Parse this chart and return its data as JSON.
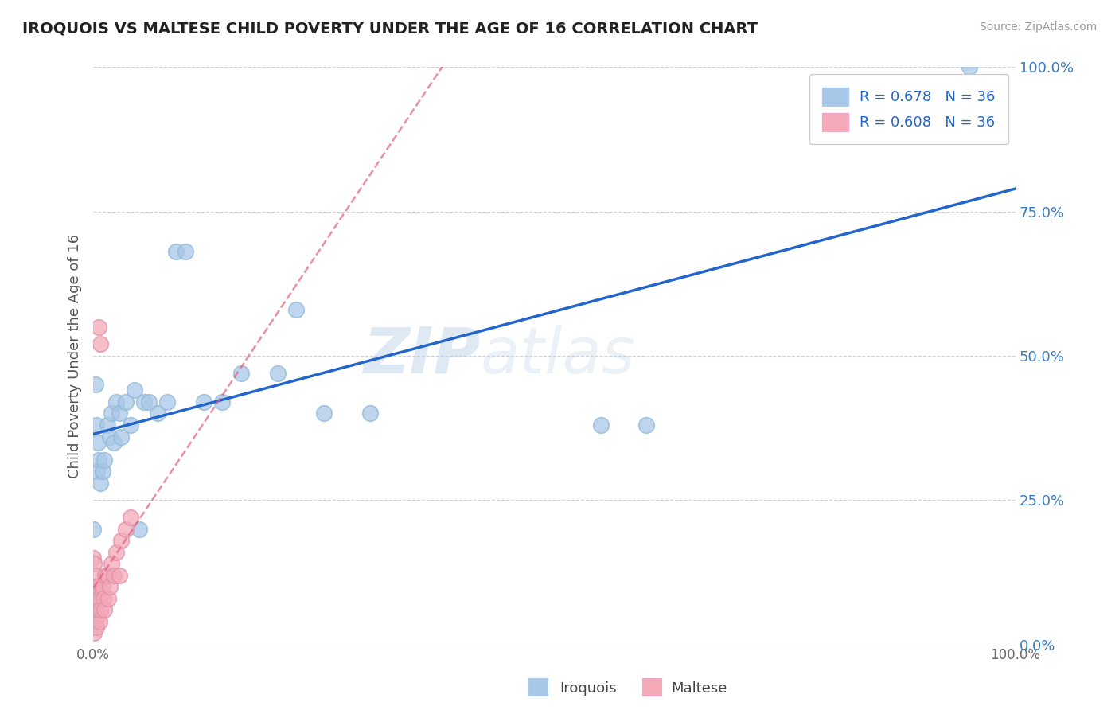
{
  "title": "IROQUOIS VS MALTESE CHILD POVERTY UNDER THE AGE OF 16 CORRELATION CHART",
  "source": "Source: ZipAtlas.com",
  "ylabel": "Child Poverty Under the Age of 16",
  "iroquois_color": "#a8c8e8",
  "maltese_color": "#f4a8b8",
  "iroquois_line_color": "#2266cc",
  "maltese_line_color": "#e06080",
  "watermark_zip": "ZIP",
  "watermark_atlas": "atlas",
  "iroquois_R": 0.678,
  "iroquois_N": 36,
  "maltese_R": 0.608,
  "maltese_N": 36,
  "iroquois_x": [
    0.0,
    0.002,
    0.003,
    0.004,
    0.005,
    0.006,
    0.008,
    0.01,
    0.012,
    0.015,
    0.018,
    0.02,
    0.022,
    0.025,
    0.028,
    0.03,
    0.035,
    0.04,
    0.045,
    0.05,
    0.055,
    0.06,
    0.07,
    0.08,
    0.09,
    0.1,
    0.12,
    0.14,
    0.16,
    0.2,
    0.22,
    0.25,
    0.3,
    0.55,
    0.6,
    0.95
  ],
  "iroquois_y": [
    0.2,
    0.45,
    0.38,
    0.3,
    0.35,
    0.32,
    0.28,
    0.3,
    0.32,
    0.38,
    0.36,
    0.4,
    0.35,
    0.42,
    0.4,
    0.36,
    0.42,
    0.38,
    0.44,
    0.2,
    0.42,
    0.42,
    0.4,
    0.42,
    0.68,
    0.68,
    0.42,
    0.42,
    0.47,
    0.47,
    0.58,
    0.4,
    0.4,
    0.38,
    0.38,
    1.0
  ],
  "maltese_x": [
    0.0,
    0.0,
    0.0,
    0.001,
    0.001,
    0.001,
    0.001,
    0.002,
    0.002,
    0.002,
    0.003,
    0.003,
    0.004,
    0.004,
    0.005,
    0.005,
    0.006,
    0.007,
    0.008,
    0.009,
    0.01,
    0.011,
    0.012,
    0.013,
    0.015,
    0.016,
    0.018,
    0.02,
    0.022,
    0.025,
    0.028,
    0.03,
    0.035,
    0.04,
    0.006,
    0.008
  ],
  "maltese_y": [
    0.05,
    0.1,
    0.15,
    0.02,
    0.06,
    0.1,
    0.14,
    0.04,
    0.08,
    0.12,
    0.03,
    0.07,
    0.06,
    0.1,
    0.05,
    0.09,
    0.08,
    0.04,
    0.06,
    0.09,
    0.1,
    0.08,
    0.06,
    0.12,
    0.12,
    0.08,
    0.1,
    0.14,
    0.12,
    0.16,
    0.12,
    0.18,
    0.2,
    0.22,
    0.55,
    0.52
  ],
  "xlim": [
    0.0,
    1.0
  ],
  "ylim": [
    0.0,
    1.0
  ],
  "right_yticks": [
    0.0,
    0.25,
    0.5,
    0.75,
    1.0
  ],
  "right_yticklabels": [
    "0.0%",
    "25.0%",
    "50.0%",
    "75.0%",
    "100.0%"
  ],
  "xtick_left_label": "0.0%",
  "xtick_right_label": "100.0%",
  "grid_yticks": [
    0.0,
    0.25,
    0.5,
    0.75,
    1.0
  ],
  "background_color": "#ffffff",
  "grid_color": "#cccccc"
}
